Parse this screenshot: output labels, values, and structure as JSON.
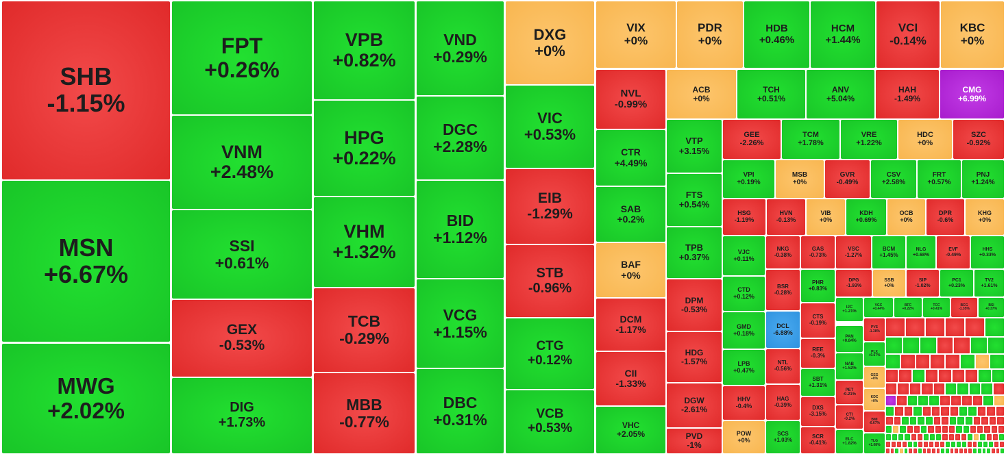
{
  "colors": {
    "up": "#19c528",
    "down": "#e02a2a",
    "flat": "#f8b650",
    "ceiling": "#a81ccd",
    "floor": "#2f93df"
  },
  "chart_data": {
    "type": "treemap",
    "title": "",
    "items": [
      {
        "ticker": "SHB",
        "change": "-1.15%",
        "value": -1.15
      },
      {
        "ticker": "MSN",
        "change": "+6.67%",
        "value": 6.67
      },
      {
        "ticker": "MWG",
        "change": "+2.02%",
        "value": 2.02
      },
      {
        "ticker": "FPT",
        "change": "+0.26%",
        "value": 0.26
      },
      {
        "ticker": "VNM",
        "change": "+2.48%",
        "value": 2.48
      },
      {
        "ticker": "SSI",
        "change": "+0.61%",
        "value": 0.61
      },
      {
        "ticker": "GEX",
        "change": "-0.53%",
        "value": -0.53
      },
      {
        "ticker": "DIG",
        "change": "+1.73%",
        "value": 1.73
      },
      {
        "ticker": "VPB",
        "change": "+0.82%",
        "value": 0.82
      },
      {
        "ticker": "HPG",
        "change": "+0.22%",
        "value": 0.22
      },
      {
        "ticker": "VHM",
        "change": "+1.32%",
        "value": 1.32
      },
      {
        "ticker": "TCB",
        "change": "-0.29%",
        "value": -0.29
      },
      {
        "ticker": "MBB",
        "change": "-0.77%",
        "value": -0.77
      },
      {
        "ticker": "VND",
        "change": "+0.29%",
        "value": 0.29
      },
      {
        "ticker": "DGC",
        "change": "+2.28%",
        "value": 2.28
      },
      {
        "ticker": "BID",
        "change": "+1.12%",
        "value": 1.12
      },
      {
        "ticker": "VCG",
        "change": "+1.15%",
        "value": 1.15
      },
      {
        "ticker": "DBC",
        "change": "+0.31%",
        "value": 0.31
      },
      {
        "ticker": "DXG",
        "change": "+0%",
        "value": 0
      },
      {
        "ticker": "VIC",
        "change": "+0.53%",
        "value": 0.53
      },
      {
        "ticker": "EIB",
        "change": "-1.29%",
        "value": -1.29
      },
      {
        "ticker": "STB",
        "change": "-0.96%",
        "value": -0.96
      },
      {
        "ticker": "CTG",
        "change": "+0.12%",
        "value": 0.12
      },
      {
        "ticker": "VCB",
        "change": "+0.53%",
        "value": 0.53
      },
      {
        "ticker": "VIX",
        "change": "+0%",
        "value": 0
      },
      {
        "ticker": "PDR",
        "change": "+0%",
        "value": 0
      },
      {
        "ticker": "HDB",
        "change": "+0.46%",
        "value": 0.46
      },
      {
        "ticker": "HCM",
        "change": "+1.44%",
        "value": 1.44
      },
      {
        "ticker": "VCI",
        "change": "-0.14%",
        "value": -0.14
      },
      {
        "ticker": "KBC",
        "change": "+0%",
        "value": 0
      },
      {
        "ticker": "NVL",
        "change": "-0.99%",
        "value": -0.99
      },
      {
        "ticker": "CTR",
        "change": "+4.49%",
        "value": 4.49
      },
      {
        "ticker": "SAB",
        "change": "+0.2%",
        "value": 0.2
      },
      {
        "ticker": "BAF",
        "change": "+0%",
        "value": 0
      },
      {
        "ticker": "DCM",
        "change": "-1.17%",
        "value": -1.17
      },
      {
        "ticker": "CII",
        "change": "-1.33%",
        "value": -1.33
      },
      {
        "ticker": "VHC",
        "change": "+2.05%",
        "value": 2.05
      },
      {
        "ticker": "ACB",
        "change": "+0%",
        "value": 0
      },
      {
        "ticker": "TCH",
        "change": "+0.51%",
        "value": 0.51
      },
      {
        "ticker": "ANV",
        "change": "+5.04%",
        "value": 5.04
      },
      {
        "ticker": "HAH",
        "change": "-1.49%",
        "value": -1.49
      },
      {
        "ticker": "CMG",
        "change": "+6.99%",
        "value": 6.99
      },
      {
        "ticker": "VTP",
        "change": "+3.15%",
        "value": 3.15
      },
      {
        "ticker": "FTS",
        "change": "+0.54%",
        "value": 0.54
      },
      {
        "ticker": "TPB",
        "change": "+0.37%",
        "value": 0.37
      },
      {
        "ticker": "DPM",
        "change": "-0.53%",
        "value": -0.53
      },
      {
        "ticker": "HDG",
        "change": "-1.57%",
        "value": -1.57
      },
      {
        "ticker": "DGW",
        "change": "-2.61%",
        "value": -2.61
      },
      {
        "ticker": "PVD",
        "change": "-1%",
        "value": -1
      },
      {
        "ticker": "GEE",
        "change": "-2.26%",
        "value": -2.26
      },
      {
        "ticker": "TCM",
        "change": "+1.78%",
        "value": 1.78
      },
      {
        "ticker": "VRE",
        "change": "+1.22%",
        "value": 1.22
      },
      {
        "ticker": "HDC",
        "change": "+0%",
        "value": 0
      },
      {
        "ticker": "SZC",
        "change": "-0.92%",
        "value": -0.92
      },
      {
        "ticker": "VPI",
        "change": "+0.19%",
        "value": 0.19
      },
      {
        "ticker": "MSB",
        "change": "+0%",
        "value": 0
      },
      {
        "ticker": "GVR",
        "change": "-0.49%",
        "value": -0.49
      },
      {
        "ticker": "CSV",
        "change": "+2.58%",
        "value": 2.58
      },
      {
        "ticker": "FRT",
        "change": "+0.57%",
        "value": 0.57
      },
      {
        "ticker": "PNJ",
        "change": "+1.24%",
        "value": 1.24
      },
      {
        "ticker": "HSG",
        "change": "-1.19%",
        "value": -1.19
      },
      {
        "ticker": "HVN",
        "change": "-0.13%",
        "value": -0.13
      },
      {
        "ticker": "VIB",
        "change": "+0%",
        "value": 0
      },
      {
        "ticker": "KDH",
        "change": "+0.69%",
        "value": 0.69
      },
      {
        "ticker": "OCB",
        "change": "+0%",
        "value": 0
      },
      {
        "ticker": "DPR",
        "change": "-0.6%",
        "value": -0.6
      },
      {
        "ticker": "KHG",
        "change": "+0%",
        "value": 0
      },
      {
        "ticker": "VJC",
        "change": "+0.11%",
        "value": 0.11
      },
      {
        "ticker": "NKG",
        "change": "-0.38%",
        "value": -0.38
      },
      {
        "ticker": "GAS",
        "change": "-0.73%",
        "value": -0.73
      },
      {
        "ticker": "VSC",
        "change": "-1.27%",
        "value": -1.27
      },
      {
        "ticker": "BCM",
        "change": "+1.45%",
        "value": 1.45
      },
      {
        "ticker": "NLG",
        "change": "+0.68%",
        "value": 0.68
      },
      {
        "ticker": "EVF",
        "change": "-0.49%",
        "value": -0.49
      },
      {
        "ticker": "HHS",
        "change": "+0.33%",
        "value": 0.33
      },
      {
        "ticker": "CTD",
        "change": "+0.12%",
        "value": 0.12
      },
      {
        "ticker": "BSR",
        "change": "-0.28%",
        "value": -0.28
      },
      {
        "ticker": "PHR",
        "change": "+0.83%",
        "value": 0.83
      },
      {
        "ticker": "DPG",
        "change": "-1.93%",
        "value": -1.93
      },
      {
        "ticker": "SSB",
        "change": "+0%",
        "value": 0
      },
      {
        "ticker": "SIP",
        "change": "-1.02%",
        "value": -1.02
      },
      {
        "ticker": "PC1",
        "change": "+0.23%",
        "value": 0.23
      },
      {
        "ticker": "TV2",
        "change": "+1.61%",
        "value": 1.61
      },
      {
        "ticker": "GMD",
        "change": "+0.18%",
        "value": 0.18
      },
      {
        "ticker": "DCL",
        "change": "-6.88%",
        "value": -6.88
      },
      {
        "ticker": "CTS",
        "change": "-0.19%",
        "value": -0.19
      },
      {
        "ticker": "IJC",
        "change": "+1.21%",
        "value": 1.21
      },
      {
        "ticker": "VGC",
        "change": "+0.44%",
        "value": 0.44
      },
      {
        "ticker": "BFC",
        "change": "+0.22%",
        "value": 0.22
      },
      {
        "ticker": "TCC",
        "change": "+0.41%",
        "value": 0.41
      },
      {
        "ticker": "BCG",
        "change": "-1.35%",
        "value": -1.35
      },
      {
        "ticker": "BSI",
        "change": "+0.37%",
        "value": 0.37
      },
      {
        "ticker": "LPB",
        "change": "+0.47%",
        "value": 0.47
      },
      {
        "ticker": "NTL",
        "change": "-0.56%",
        "value": -0.56
      },
      {
        "ticker": "REE",
        "change": "-0.3%",
        "value": -0.3
      },
      {
        "ticker": "PAN",
        "change": "+0.84%",
        "value": 0.84
      },
      {
        "ticker": "PVS",
        "change": "-1.38%",
        "value": -1.38
      },
      {
        "ticker": "PLX",
        "change": "+0.67%",
        "value": 0.67
      },
      {
        "ticker": "HHV",
        "change": "-0.4%",
        "value": -0.4
      },
      {
        "ticker": "HAG",
        "change": "-0.39%",
        "value": -0.39
      },
      {
        "ticker": "SBT",
        "change": "+1.31%",
        "value": 1.31
      },
      {
        "ticker": "NAB",
        "change": "+1.52%",
        "value": 1.52
      },
      {
        "ticker": "GEG",
        "change": "+0%",
        "value": 0
      },
      {
        "ticker": "PET",
        "change": "-0.21%",
        "value": -0.21
      },
      {
        "ticker": "KDC",
        "change": "+0%",
        "value": 0
      },
      {
        "ticker": "DXS",
        "change": "-3.15%",
        "value": -3.15
      },
      {
        "ticker": "CTI",
        "change": "-0.2%",
        "value": -0.2
      },
      {
        "ticker": "BMI",
        "change": "-0.67%",
        "value": -0.67
      },
      {
        "ticker": "POW",
        "change": "+0%",
        "value": 0
      },
      {
        "ticker": "SCS",
        "change": "+1.03%",
        "value": 1.03
      },
      {
        "ticker": "SCR",
        "change": "-0.41%",
        "value": -0.41
      },
      {
        "ticker": "ELC",
        "change": "+1.82%",
        "value": 1.82
      },
      {
        "ticker": "TLG",
        "change": "+1.08%",
        "value": 1.08
      }
    ]
  }
}
